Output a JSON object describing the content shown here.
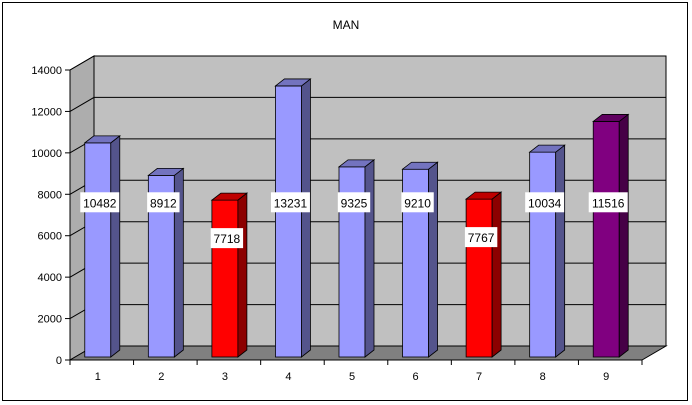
{
  "chart_data": {
    "type": "bar",
    "title": "MAN",
    "categories": [
      "1",
      "2",
      "3",
      "4",
      "5",
      "6",
      "7",
      "8",
      "9"
    ],
    "values": [
      10482,
      8912,
      7718,
      13231,
      9325,
      9210,
      7767,
      10034,
      11516
    ],
    "colors": [
      "#9999ff",
      "#9999ff",
      "#ff0000",
      "#9999ff",
      "#9999ff",
      "#9999ff",
      "#ff0000",
      "#9999ff",
      "#800080"
    ],
    "data_labels": [
      "10482",
      "8912",
      "7718",
      "13231",
      "9325",
      "9210",
      "7767",
      "10034",
      "11516"
    ],
    "ylim": [
      0,
      14000
    ],
    "yticks": [
      "0",
      "2000",
      "4000",
      "6000",
      "8000",
      "10000",
      "12000",
      "14000"
    ],
    "grid": true,
    "style": "3d-column",
    "wall_color": "#c0c0c0",
    "floor_color": "#808080"
  }
}
